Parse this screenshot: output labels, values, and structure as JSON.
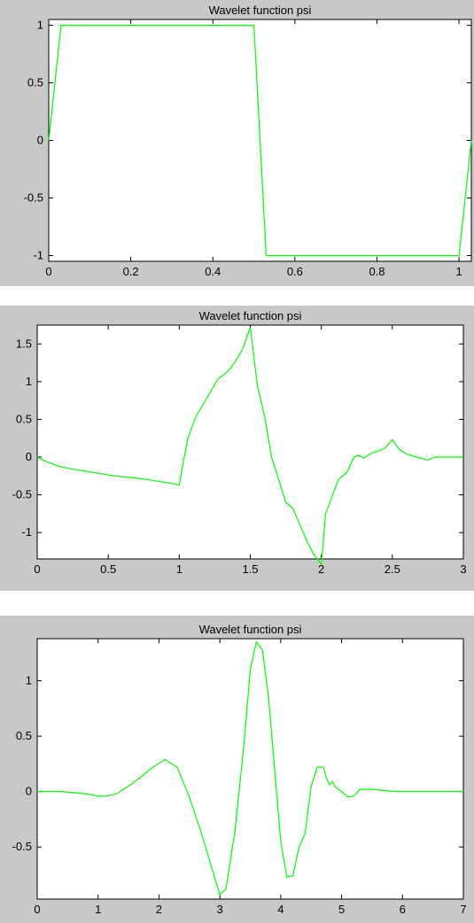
{
  "chart_data": [
    {
      "type": "line",
      "title": "Wavelet function psi",
      "xlim": [
        0,
        1.03
      ],
      "ylim": [
        -1.05,
        1.05
      ],
      "xticks": [
        0,
        0.2,
        0.4,
        0.6,
        0.8,
        1
      ],
      "xticklabels": [
        "0",
        "0.2",
        "0.4",
        "0.6",
        "0.8",
        "1"
      ],
      "yticks": [
        1,
        0.5,
        0,
        -0.5,
        -1
      ],
      "yticklabels": [
        "1",
        "0.5",
        "0",
        "-0.5",
        "-1"
      ],
      "grid": false,
      "line_color": "#00ff00",
      "series": [
        {
          "x": [
            0,
            0.03,
            0.5,
            0.53,
            1.0,
            1.03
          ],
          "y": [
            0,
            1,
            1,
            -1,
            -1,
            0
          ]
        }
      ]
    },
    {
      "type": "line",
      "title": "Wavelet function psi",
      "xlim": [
        0,
        3
      ],
      "ylim": [
        -1.35,
        1.75
      ],
      "xticks": [
        0,
        0.5,
        1,
        1.5,
        2,
        2.5,
        3
      ],
      "xticklabels": [
        "0",
        "0.5",
        "1",
        "1.5",
        "2",
        "2.5",
        "3"
      ],
      "yticks": [
        1.5,
        1,
        0.5,
        0,
        -0.5,
        -1
      ],
      "yticklabels": [
        "1.5",
        "1",
        "0.5",
        "0",
        "-0.5",
        "-1"
      ],
      "grid": false,
      "line_color": "#00ff00",
      "series": [
        {
          "x": [
            0,
            0.05,
            0.15,
            0.25,
            0.35,
            0.45,
            0.55,
            0.65,
            0.75,
            0.85,
            0.95,
            1.0,
            1.03,
            1.06,
            1.12,
            1.2,
            1.27,
            1.35,
            1.4,
            1.45,
            1.5,
            1.55,
            1.6,
            1.65,
            1.7,
            1.75,
            1.8,
            1.85,
            1.9,
            1.95,
            2.0,
            2.03,
            2.07,
            2.12,
            2.18,
            2.23,
            2.26,
            2.3,
            2.35,
            2.4,
            2.45,
            2.5,
            2.55,
            2.6,
            2.67,
            2.75,
            2.8,
            2.9,
            3.0
          ],
          "y": [
            0,
            -0.05,
            -0.12,
            -0.16,
            -0.19,
            -0.22,
            -0.25,
            -0.27,
            -0.29,
            -0.32,
            -0.35,
            -0.37,
            -0.05,
            0.25,
            0.55,
            0.8,
            1.03,
            1.15,
            1.28,
            1.45,
            1.72,
            0.95,
            0.55,
            0.0,
            -0.3,
            -0.6,
            -0.68,
            -0.9,
            -1.12,
            -1.3,
            -1.42,
            -0.75,
            -0.55,
            -0.3,
            -0.2,
            0.0,
            0.02,
            -0.01,
            0.05,
            0.08,
            0.12,
            0.23,
            0.1,
            0.04,
            0.0,
            -0.04,
            0.0,
            0.0,
            0.0
          ]
        }
      ]
    },
    {
      "type": "line",
      "title": "Wavelet function psi",
      "xlim": [
        0,
        7
      ],
      "ylim": [
        -0.97,
        1.38
      ],
      "xticks": [
        0,
        1,
        2,
        3,
        4,
        5,
        6,
        7
      ],
      "xticklabels": [
        "0",
        "1",
        "2",
        "3",
        "4",
        "5",
        "6",
        "7"
      ],
      "yticks": [
        1,
        0.5,
        0,
        -0.5
      ],
      "yticklabels": [
        "1",
        "0.5",
        "0",
        "-0.5"
      ],
      "grid": false,
      "line_color": "#00ff00",
      "series": [
        {
          "x": [
            0,
            0.4,
            0.8,
            1.0,
            1.15,
            1.3,
            1.5,
            1.7,
            1.9,
            2.1,
            2.3,
            2.5,
            2.7,
            2.9,
            3.0,
            3.1,
            3.25,
            3.4,
            3.5,
            3.6,
            3.7,
            3.8,
            3.9,
            4.0,
            4.1,
            4.2,
            4.3,
            4.4,
            4.5,
            4.6,
            4.7,
            4.75,
            4.8,
            4.85,
            4.9,
            5.0,
            5.1,
            5.2,
            5.3,
            5.5,
            5.7,
            5.9,
            6.2,
            6.6,
            7.0
          ],
          "y": [
            0,
            0,
            -0.02,
            -0.04,
            -0.04,
            -0.02,
            0.05,
            0.13,
            0.22,
            0.29,
            0.22,
            -0.05,
            -0.38,
            -0.75,
            -0.93,
            -0.88,
            -0.35,
            0.45,
            1.1,
            1.35,
            1.28,
            0.85,
            0.2,
            -0.45,
            -0.77,
            -0.76,
            -0.5,
            -0.38,
            0.05,
            0.22,
            0.22,
            0.12,
            0.06,
            0.09,
            0.04,
            0.0,
            -0.05,
            -0.04,
            0.02,
            0.02,
            0.01,
            0.0,
            0.0,
            0.0,
            0.0
          ]
        }
      ]
    }
  ]
}
